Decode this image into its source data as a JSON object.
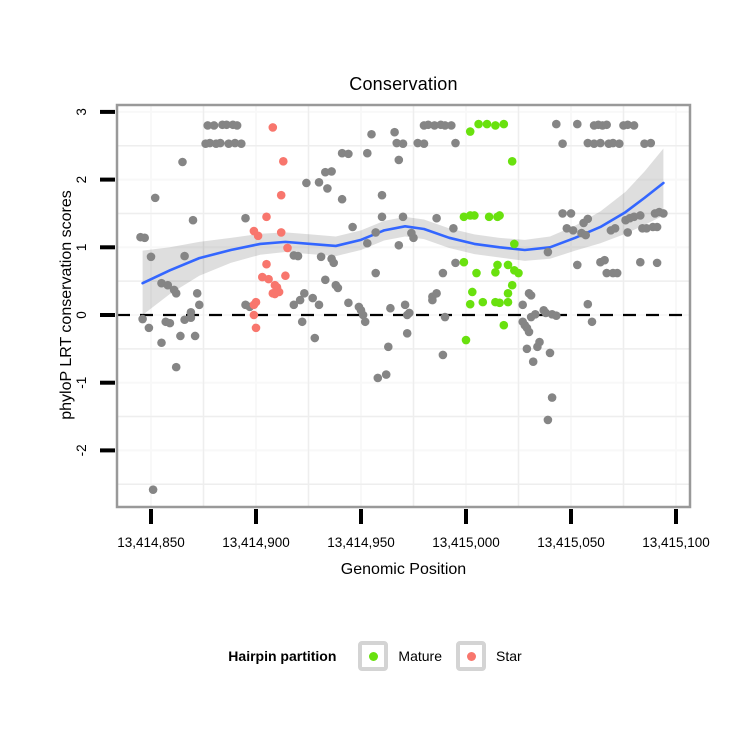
{
  "title": "Conservation",
  "axes": {
    "x": {
      "label": "Genomic Position"
    },
    "y": {
      "label": "phyloP LRT conservation scores"
    }
  },
  "legend": {
    "title": "Hairpin partition",
    "items": [
      {
        "label": "Mature",
        "color": "#69E10E"
      },
      {
        "label": "Star",
        "color": "#F8766D"
      }
    ]
  },
  "colors": {
    "other_points": "#858585",
    "mature_points": "#69E10E",
    "star_points": "#F8766D",
    "smooth_line": "#3366FF",
    "confidence_band": "rgba(0,0,0,0.13)",
    "panel_border": "#999999",
    "minor_grid": "#EEEEEE",
    "major_grid": "#F8F8F8",
    "zero_line": "#000000"
  },
  "chart_data": {
    "type": "scatter",
    "title": "Conservation",
    "xlabel": "Genomic Position",
    "ylabel": "phyloP LRT conservation scores",
    "xlim": [
      13414834,
      13415107
    ],
    "ylim": [
      -2.84,
      3.1
    ],
    "grid": "minor-light",
    "legend_position": "bottom",
    "x_ticks": [
      {
        "value": 13414850,
        "label": "13,414,850"
      },
      {
        "value": 13414900,
        "label": "13,414,900"
      },
      {
        "value": 13414950,
        "label": "13,414,950"
      },
      {
        "value": 13415000,
        "label": "13,415,000"
      },
      {
        "value": 13415050,
        "label": "13,415,050"
      },
      {
        "value": 13415100,
        "label": "13,415,100"
      }
    ],
    "y_ticks": [
      {
        "value": 3,
        "label": "3"
      },
      {
        "value": 2,
        "label": "2"
      },
      {
        "value": 1,
        "label": "1"
      },
      {
        "value": 0,
        "label": "0"
      },
      {
        "value": -1,
        "label": "-1"
      },
      {
        "value": -2,
        "label": "-2"
      }
    ],
    "x_minor": [
      13414875,
      13414925,
      13414975,
      13415025,
      13415075
    ],
    "y_minor": [
      2.5,
      1.5,
      0.5,
      -0.5,
      -1.5,
      -2.5
    ],
    "hline": {
      "y": 0,
      "style": "dashed",
      "color": "#000000"
    },
    "series": [
      {
        "name": "Other",
        "color": "#858585",
        "points": [
          [
            13414877,
            2.8
          ],
          [
            13414880,
            2.8
          ],
          [
            13414884,
            2.81
          ],
          [
            13414886,
            2.81
          ],
          [
            13414889,
            2.81
          ],
          [
            13414891,
            2.8
          ],
          [
            13414980,
            2.8
          ],
          [
            13414982,
            2.81
          ],
          [
            13414985,
            2.8
          ],
          [
            13414988,
            2.81
          ],
          [
            13414990,
            2.8
          ],
          [
            13414993,
            2.8
          ],
          [
            13415043,
            2.82
          ],
          [
            13415053,
            2.82
          ],
          [
            13415061,
            2.8
          ],
          [
            13415063,
            2.81
          ],
          [
            13415065,
            2.8
          ],
          [
            13415067,
            2.81
          ],
          [
            13415075,
            2.8
          ],
          [
            13415077,
            2.81
          ],
          [
            13415080,
            2.8
          ],
          [
            13414876,
            2.53
          ],
          [
            13414878,
            2.54
          ],
          [
            13414881,
            2.53
          ],
          [
            13414883,
            2.54
          ],
          [
            13414887,
            2.53
          ],
          [
            13414890,
            2.54
          ],
          [
            13414893,
            2.53
          ],
          [
            13414967,
            2.54
          ],
          [
            13414970,
            2.53
          ],
          [
            13414977,
            2.54
          ],
          [
            13414980,
            2.53
          ],
          [
            13414995,
            2.54
          ],
          [
            13415046,
            2.53
          ],
          [
            13415058,
            2.54
          ],
          [
            13415061,
            2.53
          ],
          [
            13415064,
            2.54
          ],
          [
            13415068,
            2.53
          ],
          [
            13415070,
            2.54
          ],
          [
            13415073,
            2.53
          ],
          [
            13415085,
            2.53
          ],
          [
            13415088,
            2.54
          ],
          [
            13414865,
            2.26
          ],
          [
            13414955,
            2.67
          ],
          [
            13414966,
            2.7
          ],
          [
            13414941,
            2.39
          ],
          [
            13414944,
            2.38
          ],
          [
            13414953,
            2.39
          ],
          [
            13414968,
            2.29
          ],
          [
            13414852,
            1.73
          ],
          [
            13414933,
            2.11
          ],
          [
            13414936,
            2.12
          ],
          [
            13414924,
            1.95
          ],
          [
            13414930,
            1.96
          ],
          [
            13414934,
            1.87
          ],
          [
            13414941,
            1.71
          ],
          [
            13414960,
            1.77
          ],
          [
            13414870,
            1.4
          ],
          [
            13414895,
            1.43
          ],
          [
            13414845,
            1.15
          ],
          [
            13414847,
            1.14
          ],
          [
            13414960,
            1.45
          ],
          [
            13414970,
            1.45
          ],
          [
            13414986,
            1.43
          ],
          [
            13414994,
            1.28
          ],
          [
            13414946,
            1.3
          ],
          [
            13414957,
            1.22
          ],
          [
            13414974,
            1.21
          ],
          [
            13414975,
            1.14
          ],
          [
            13414850,
            0.86
          ],
          [
            13414866,
            0.87
          ],
          [
            13414953,
            1.06
          ],
          [
            13414968,
            1.03
          ],
          [
            13414918,
            0.88
          ],
          [
            13414920,
            0.87
          ],
          [
            13415046,
            1.5
          ],
          [
            13415050,
            1.5
          ],
          [
            13415056,
            1.36
          ],
          [
            13415058,
            1.42
          ],
          [
            13415048,
            1.28
          ],
          [
            13415051,
            1.25
          ],
          [
            13415055,
            1.21
          ],
          [
            13415057,
            1.18
          ],
          [
            13415069,
            1.25
          ],
          [
            13415071,
            1.28
          ],
          [
            13415076,
            1.4
          ],
          [
            13415078,
            1.43
          ],
          [
            13415080,
            1.45
          ],
          [
            13415083,
            1.47
          ],
          [
            13415077,
            1.22
          ],
          [
            13415084,
            1.28
          ],
          [
            13415086,
            1.28
          ],
          [
            13415089,
            1.3
          ],
          [
            13415091,
            1.3
          ],
          [
            13415090,
            1.5
          ],
          [
            13415092,
            1.52
          ],
          [
            13415094,
            1.5
          ],
          [
            13415039,
            0.93
          ],
          [
            13415053,
            0.74
          ],
          [
            13415064,
            0.78
          ],
          [
            13415066,
            0.81
          ],
          [
            13415067,
            0.62
          ],
          [
            13415070,
            0.62
          ],
          [
            13415072,
            0.62
          ],
          [
            13415083,
            0.78
          ],
          [
            13415091,
            0.77
          ],
          [
            13414855,
            0.47
          ],
          [
            13414858,
            0.44
          ],
          [
            13414861,
            0.37
          ],
          [
            13414862,
            0.32
          ],
          [
            13414931,
            0.86
          ],
          [
            13414936,
            0.83
          ],
          [
            13414937,
            0.77
          ],
          [
            13414957,
            0.62
          ],
          [
            13414989,
            0.62
          ],
          [
            13414995,
            0.77
          ],
          [
            13414933,
            0.52
          ],
          [
            13414938,
            0.44
          ],
          [
            13414939,
            0.4
          ],
          [
            13414923,
            0.32
          ],
          [
            13414984,
            0.27
          ],
          [
            13414986,
            0.32
          ],
          [
            13414872,
            0.32
          ],
          [
            13414873,
            0.15
          ],
          [
            13414895,
            0.15
          ],
          [
            13414897,
            0.12
          ],
          [
            13414918,
            0.15
          ],
          [
            13414921,
            0.22
          ],
          [
            13414927,
            0.25
          ],
          [
            13414930,
            0.15
          ],
          [
            13414922,
            -0.1
          ],
          [
            13414928,
            -0.34
          ],
          [
            13414944,
            0.18
          ],
          [
            13414949,
            0.12
          ],
          [
            13414950,
            0.07
          ],
          [
            13414951,
            0.0
          ],
          [
            13414952,
            -0.1
          ],
          [
            13414964,
            0.1
          ],
          [
            13414971,
            0.15
          ],
          [
            13414972,
            0.0
          ],
          [
            13414973,
            0.03
          ],
          [
            13414972,
            -0.27
          ],
          [
            13414963,
            -0.47
          ],
          [
            13414958,
            -0.93
          ],
          [
            13414962,
            -0.88
          ],
          [
            13414984,
            0.22
          ],
          [
            13414990,
            -0.03
          ],
          [
            13414989,
            -0.59
          ],
          [
            13414857,
            -0.1
          ],
          [
            13414859,
            -0.12
          ],
          [
            13414866,
            -0.07
          ],
          [
            13414869,
            0.04
          ],
          [
            13414869,
            -0.04
          ],
          [
            13414846,
            -0.06
          ],
          [
            13414849,
            -0.19
          ],
          [
            13414864,
            -0.31
          ],
          [
            13414871,
            -0.31
          ],
          [
            13414855,
            -0.41
          ],
          [
            13414862,
            -0.77
          ],
          [
            13414851,
            -2.58
          ],
          [
            13415031,
            0.29
          ],
          [
            13415027,
            0.15
          ],
          [
            13415030,
            0.32
          ],
          [
            13415027,
            -0.1
          ],
          [
            13415028,
            -0.15
          ],
          [
            13415029,
            -0.19
          ],
          [
            13415030,
            -0.25
          ],
          [
            13415031,
            -0.03
          ],
          [
            13415033,
            0.01
          ],
          [
            13415037,
            0.07
          ],
          [
            13415038,
            0.03
          ],
          [
            13415041,
            0.01
          ],
          [
            13415043,
            -0.01
          ],
          [
            13415029,
            -0.5
          ],
          [
            13415034,
            -0.47
          ],
          [
            13415035,
            -0.4
          ],
          [
            13415040,
            -0.56
          ],
          [
            13415032,
            -0.69
          ],
          [
            13415058,
            0.16
          ],
          [
            13415060,
            -0.1
          ],
          [
            13415041,
            -1.22
          ],
          [
            13415039,
            -1.55
          ]
        ]
      },
      {
        "name": "Mature",
        "color": "#69E10E",
        "points": [
          [
            13415006,
            2.82
          ],
          [
            13415010,
            2.82
          ],
          [
            13415014,
            2.8
          ],
          [
            13415018,
            2.82
          ],
          [
            13415002,
            2.71
          ],
          [
            13415022,
            2.27
          ],
          [
            13414999,
            1.45
          ],
          [
            13415002,
            1.47
          ],
          [
            13415004,
            1.47
          ],
          [
            13415011,
            1.45
          ],
          [
            13415015,
            1.45
          ],
          [
            13415016,
            1.47
          ],
          [
            13415023,
            1.05
          ],
          [
            13414999,
            0.78
          ],
          [
            13415005,
            0.62
          ],
          [
            13415014,
            0.63
          ],
          [
            13415015,
            0.74
          ],
          [
            13415020,
            0.74
          ],
          [
            13415023,
            0.66
          ],
          [
            13415025,
            0.62
          ],
          [
            13415003,
            0.34
          ],
          [
            13415008,
            0.19
          ],
          [
            13415014,
            0.19
          ],
          [
            13415002,
            0.16
          ],
          [
            13415016,
            0.18
          ],
          [
            13415020,
            0.19
          ],
          [
            13415022,
            0.44
          ],
          [
            13415020,
            0.32
          ],
          [
            13415018,
            -0.15
          ],
          [
            13415000,
            -0.37
          ]
        ]
      },
      {
        "name": "Star",
        "color": "#F8766D",
        "points": [
          [
            13414908,
            2.77
          ],
          [
            13414913,
            2.27
          ],
          [
            13414912,
            1.77
          ],
          [
            13414905,
            1.45
          ],
          [
            13414899,
            1.24
          ],
          [
            13414901,
            1.17
          ],
          [
            13414912,
            1.22
          ],
          [
            13414915,
            0.99
          ],
          [
            13414905,
            0.75
          ],
          [
            13414903,
            0.56
          ],
          [
            13414906,
            0.53
          ],
          [
            13414914,
            0.58
          ],
          [
            13414909,
            0.44
          ],
          [
            13414910,
            0.41
          ],
          [
            13414908,
            0.32
          ],
          [
            13414911,
            0.34
          ],
          [
            13414900,
            0.19
          ],
          [
            13414899,
            0.15
          ],
          [
            13414899,
            0.0
          ],
          [
            13414900,
            -0.19
          ],
          [
            13414909,
            0.31
          ]
        ]
      }
    ],
    "smooth": {
      "name": "loess fit with confidence band",
      "line_color": "#3366FF",
      "band_color": "rgba(0,0,0,0.13)",
      "points": [
        [
          13414846,
          0.47,
          0.0,
          0.95
        ],
        [
          13414859,
          0.66,
          0.31,
          1.0
        ],
        [
          13414873,
          0.84,
          0.58,
          1.08
        ],
        [
          13414888,
          0.96,
          0.77,
          1.14
        ],
        [
          13414902,
          1.05,
          0.89,
          1.2
        ],
        [
          13414914,
          1.08,
          0.93,
          1.22
        ],
        [
          13414926,
          1.05,
          0.9,
          1.19
        ],
        [
          13414938,
          1.02,
          0.87,
          1.16
        ],
        [
          13414950,
          1.11,
          0.96,
          1.25
        ],
        [
          13414961,
          1.25,
          1.1,
          1.39
        ],
        [
          13414971,
          1.31,
          1.16,
          1.45
        ],
        [
          13414980,
          1.27,
          1.12,
          1.41
        ],
        [
          13414992,
          1.14,
          0.99,
          1.28
        ],
        [
          13415004,
          1.05,
          0.9,
          1.19
        ],
        [
          13415016,
          1.0,
          0.85,
          1.14
        ],
        [
          13415028,
          0.96,
          0.8,
          1.11
        ],
        [
          13415040,
          1.0,
          0.83,
          1.16
        ],
        [
          13415052,
          1.14,
          0.95,
          1.32
        ],
        [
          13415064,
          1.3,
          1.06,
          1.53
        ],
        [
          13415076,
          1.52,
          1.2,
          1.82
        ],
        [
          13415085,
          1.73,
          1.33,
          2.12
        ],
        [
          13415094,
          1.95,
          1.47,
          2.46
        ]
      ]
    }
  }
}
